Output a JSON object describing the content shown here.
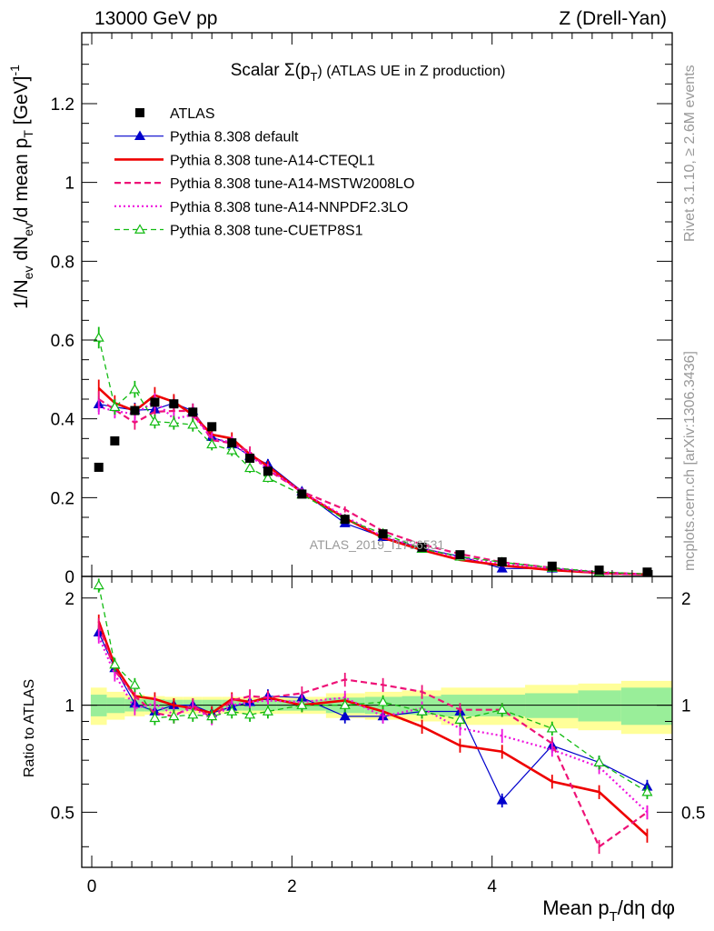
{
  "header": {
    "left": "13000 GeV pp",
    "right": "Z (Drell-Yan)"
  },
  "side": {
    "rivet": "Rivet 3.1.10, ≥ 2.6M events",
    "mcplots": "mcplots.cern.ch [arXiv:1306.3436]"
  },
  "watermark": "ATLAS_2019_I1736531",
  "chart_data": {
    "type": "line",
    "title": "Scalar Σ(pT) (ATLAS UE in Z production)",
    "title_main": "Scalar Σ(p",
    "title_sub": "T",
    "title_rest": ") (ATLAS UE in Z production)",
    "xlabel": "Mean pT/dη dφ",
    "xlabel_main": "Mean p",
    "xlabel_sub": "T",
    "xlabel_rest": "/dη dφ",
    "ylabel": "1/Nev dNev/d mean pT [GeV]^-1",
    "ratio_ylabel": "Ratio to ATLAS",
    "xlim": [
      -0.1,
      5.8
    ],
    "ylim": [
      0,
      1.38
    ],
    "ratio_ylim": [
      0.35,
      2.3
    ],
    "xticks": [
      0,
      2,
      4
    ],
    "xtick_labels": [
      "0",
      "2",
      "4"
    ],
    "yticks": [
      0,
      0.2,
      0.4,
      0.6,
      0.8,
      1,
      1.2
    ],
    "ytick_labels": [
      "0",
      "0.2",
      "0.4",
      "0.6",
      "0.8",
      "1",
      "1.2"
    ],
    "ratio_yticks": [
      0.5,
      1,
      2
    ],
    "ratio_ytick_labels": [
      "0.5",
      "1",
      "2"
    ],
    "legend_position": "top-left",
    "x": [
      0.07,
      0.23,
      0.43,
      0.63,
      0.82,
      1.01,
      1.2,
      1.4,
      1.58,
      1.76,
      2.1,
      2.53,
      2.91,
      3.3,
      3.68,
      4.1,
      4.6,
      5.07,
      5.55
    ],
    "data": {
      "name": "ATLAS",
      "values": [
        0.277,
        0.344,
        0.421,
        0.442,
        0.438,
        0.417,
        0.38,
        0.339,
        0.3,
        0.267,
        0.209,
        0.145,
        0.108,
        0.074,
        0.055,
        0.037,
        0.026,
        0.016,
        0.011
      ]
    },
    "band": {
      "edges": [
        -0.01,
        0.15,
        0.33,
        0.53,
        0.73,
        0.91,
        1.1,
        1.3,
        1.5,
        1.67,
        1.85,
        2.34,
        2.73,
        3.1,
        3.49,
        3.88,
        4.33,
        4.86,
        5.29,
        5.8
      ],
      "inner": [
        0.07,
        0.05,
        0.04,
        0.04,
        0.035,
        0.035,
        0.035,
        0.035,
        0.035,
        0.035,
        0.035,
        0.05,
        0.055,
        0.06,
        0.07,
        0.07,
        0.08,
        0.1,
        0.12
      ],
      "outer": [
        0.12,
        0.09,
        0.07,
        0.06,
        0.055,
        0.055,
        0.055,
        0.055,
        0.055,
        0.055,
        0.055,
        0.08,
        0.09,
        0.1,
        0.12,
        0.12,
        0.14,
        0.15,
        0.17
      ]
    },
    "series": [
      {
        "name": "Pythia 8.308 default",
        "color": "#0000cc",
        "dash": "",
        "width": 1.2,
        "marker": "triangle-filled",
        "values": [
          0.437,
          0.43,
          0.422,
          0.424,
          0.44,
          0.42,
          0.354,
          0.335,
          0.306,
          0.285,
          0.216,
          0.135,
          0.1,
          0.071,
          0.051,
          0.02,
          0.02,
          0.011,
          0.006
        ],
        "ratio": [
          1.6,
          1.27,
          1.01,
          0.96,
          1.0,
          1.0,
          0.95,
          0.99,
          1.02,
          1.06,
          1.05,
          0.93,
          0.93,
          0.96,
          0.96,
          0.54,
          0.77,
          0.69,
          0.59
        ]
      },
      {
        "name": "Pythia 8.308 tune-A14-CTEQL1",
        "color": "#ee0000",
        "dash": "",
        "width": 2.6,
        "marker": "none",
        "values": [
          0.478,
          0.44,
          0.42,
          0.46,
          0.443,
          0.41,
          0.36,
          0.35,
          0.31,
          0.28,
          0.213,
          0.148,
          0.098,
          0.067,
          0.042,
          0.028,
          0.016,
          0.009,
          0.005
        ],
        "ratio": [
          1.72,
          1.29,
          1.06,
          1.04,
          1.0,
          0.98,
          0.95,
          1.04,
          1.02,
          1.05,
          1.0,
          1.03,
          0.96,
          0.87,
          0.77,
          0.74,
          0.61,
          0.57,
          0.43
        ]
      },
      {
        "name": "Pythia 8.308 tune-A14-MSTW2008LO",
        "color": "#ee1177",
        "dash": "7,4",
        "width": 2.2,
        "marker": "none",
        "values": [
          0.45,
          0.423,
          0.39,
          0.418,
          0.42,
          0.42,
          0.346,
          0.338,
          0.316,
          0.27,
          0.215,
          0.17,
          0.115,
          0.081,
          0.057,
          0.036,
          0.022,
          0.007,
          0.005
        ],
        "ratio": [
          1.68,
          1.25,
          1.06,
          0.95,
          0.93,
          1.0,
          0.92,
          1.03,
          1.06,
          1.05,
          1.08,
          1.18,
          1.14,
          1.09,
          0.97,
          0.97,
          0.78,
          0.4,
          0.5
        ]
      },
      {
        "name": "Pythia 8.308 tune-A14-NNPDF2.3LO",
        "color": "#ee11dd",
        "dash": "2,3",
        "width": 2.2,
        "marker": "none",
        "values": [
          0.43,
          0.42,
          0.412,
          0.445,
          0.4,
          0.41,
          0.35,
          0.34,
          0.305,
          0.274,
          0.214,
          0.152,
          0.101,
          0.072,
          0.047,
          0.033,
          0.021,
          0.011,
          0.005
        ],
        "ratio": [
          1.56,
          1.22,
          0.98,
          1.01,
          0.94,
          0.98,
          0.92,
          1.0,
          1.02,
          1.03,
          1.02,
          1.05,
          0.93,
          0.98,
          0.86,
          0.82,
          0.75,
          0.67,
          0.5
        ]
      },
      {
        "name": "Pythia 8.308 tune-CUETP8S1",
        "color": "#11bb11",
        "dash": "6,4",
        "width": 1.3,
        "marker": "triangle-open",
        "values": [
          0.606,
          0.43,
          0.475,
          0.393,
          0.39,
          0.385,
          0.335,
          0.32,
          0.275,
          0.25,
          0.208,
          0.145,
          0.109,
          0.07,
          0.05,
          0.036,
          0.022,
          0.011,
          0.006
        ],
        "ratio": [
          2.17,
          1.3,
          1.14,
          0.92,
          0.93,
          0.94,
          0.93,
          0.96,
          0.94,
          0.96,
          1.0,
          1.0,
          1.02,
          0.96,
          0.91,
          0.97,
          0.86,
          0.69,
          0.57
        ]
      }
    ]
  }
}
